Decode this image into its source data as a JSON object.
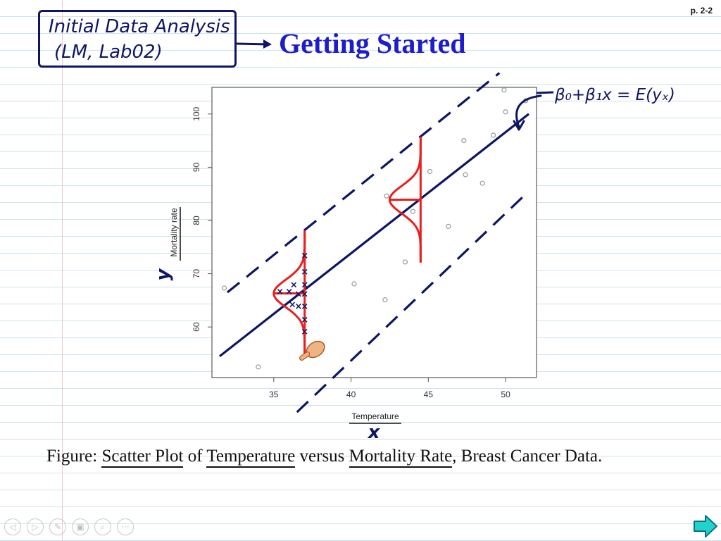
{
  "page": {
    "number": "p. 2-2"
  },
  "header": {
    "box_line1": "Initial Data Analysis",
    "box_line2": "(LM, Lab02)",
    "title": "Getting Started"
  },
  "annotations": {
    "equation": "β₀+β₁x = E(yₓ)",
    "y_symbol": "y",
    "x_symbol": "x"
  },
  "caption": {
    "prefix": "Figure:",
    "part1": "Scatter Plot",
    "of": "of",
    "part2": "Temperature",
    "versus": "versus",
    "part3": "Mortality Rate",
    "suffix": ", Breast Cancer Data."
  },
  "chart_data": {
    "type": "scatter",
    "xlabel": "Temperature",
    "ylabel": "Mortality rate",
    "xlim": [
      31,
      52
    ],
    "ylim": [
      50.5,
      105
    ],
    "xticks": [
      35,
      40,
      45,
      50
    ],
    "yticks": [
      60,
      70,
      80,
      90,
      100
    ],
    "x": [
      31.8,
      34.0,
      40.2,
      42.2,
      42.3,
      43.5,
      44.0,
      45.1,
      46.3,
      47.3,
      47.4,
      48.5,
      49.2,
      49.9,
      50.0,
      51.3
    ],
    "y": [
      67.3,
      52.5,
      68.1,
      65.1,
      84.6,
      72.2,
      81.7,
      89.2,
      78.9,
      95.0,
      88.6,
      87.0,
      96.0,
      104.5,
      100.4,
      102.5
    ],
    "regression_line": {
      "x": [
        31.5,
        51.5
      ],
      "y": [
        54.5,
        100.0
      ]
    },
    "band_offset": 12,
    "colors": {
      "points": "#999999",
      "handwriting": "#0e1566",
      "density": "#e8201e"
    }
  },
  "toolbar": {
    "buttons": [
      {
        "name": "prev-icon",
        "glyph": "◁"
      },
      {
        "name": "play-icon",
        "glyph": "▷"
      },
      {
        "name": "pen-icon",
        "glyph": "✎"
      },
      {
        "name": "pages-icon",
        "glyph": "▣"
      },
      {
        "name": "search-icon",
        "glyph": "⌕"
      },
      {
        "name": "more-icon",
        "glyph": "···"
      }
    ]
  }
}
